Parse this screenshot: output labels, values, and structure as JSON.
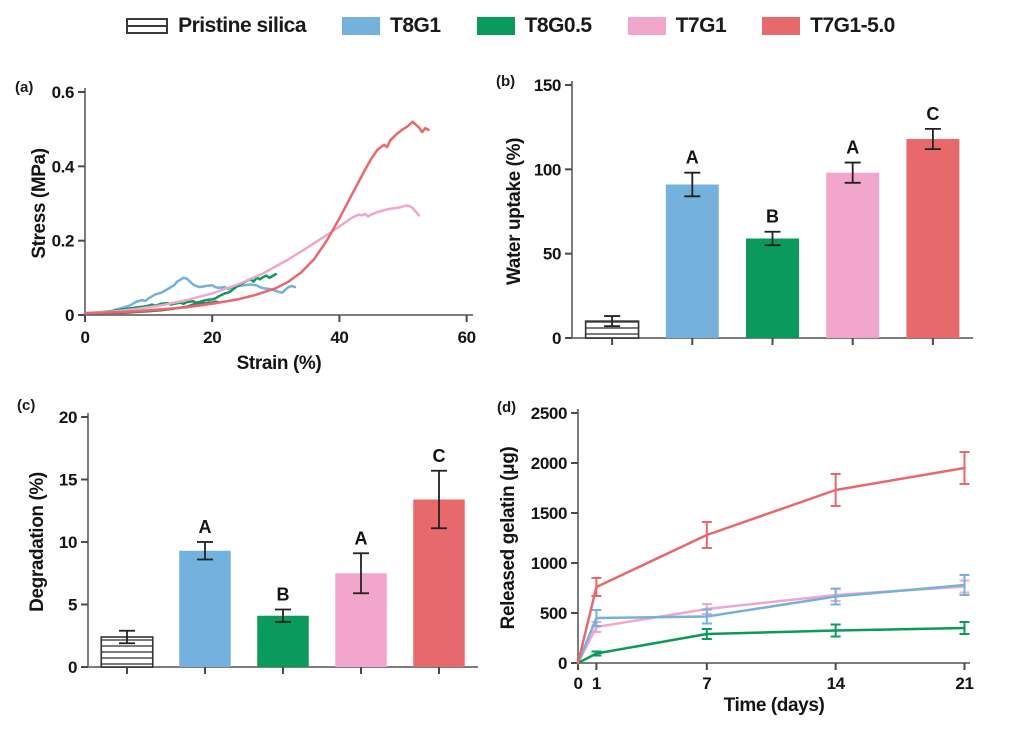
{
  "figure": {
    "legend": [
      {
        "label": "Pristine silica",
        "color": "#ffffff",
        "style": "hatched"
      },
      {
        "label": "T8G1",
        "color": "#74b1dc",
        "style": "solid"
      },
      {
        "label": "T8G0.5",
        "color": "#0a9b5c",
        "style": "solid"
      },
      {
        "label": "T7G1",
        "color": "#f3a6cb",
        "style": "solid"
      },
      {
        "label": "T7G1-5.0",
        "color": "#e8696b",
        "style": "solid"
      }
    ]
  },
  "chart_data": [
    {
      "id": "a",
      "type": "line",
      "panel_label": "(a)",
      "xlabel": "Strain (%)",
      "ylabel": "Stress (MPa)",
      "xlim": [
        0,
        61
      ],
      "ylim": [
        0,
        0.6
      ],
      "xticks": [
        0,
        20,
        40,
        60
      ],
      "yticks": [
        0,
        0.2,
        0.4,
        0.6
      ],
      "grid": false,
      "series": [
        {
          "name": "Pristine silica",
          "color": "#6a6a6a",
          "x": [
            0,
            3,
            6,
            8,
            10,
            12,
            13,
            14,
            15,
            16,
            16.5,
            17,
            17.5,
            18,
            18.5,
            19,
            19.5,
            20,
            20.5,
            21
          ],
          "y": [
            0.003,
            0.004,
            0.006,
            0.008,
            0.01,
            0.013,
            0.015,
            0.017,
            0.02,
            0.022,
            0.025,
            0.028,
            0.032,
            0.03,
            0.033,
            0.031,
            0.034,
            0.033,
            0.036,
            0.034
          ]
        },
        {
          "name": "T8G1",
          "color": "#74b1dc",
          "x": [
            0,
            2,
            4,
            5,
            6,
            7,
            8,
            9,
            9.5,
            10,
            11,
            12,
            13,
            14,
            14.5,
            15,
            15.5,
            16,
            16.5,
            17,
            17.5,
            18,
            19,
            20,
            20.5,
            21,
            22,
            22.5,
            23,
            24,
            25,
            26,
            27,
            27.5,
            28,
            29,
            30,
            30.5,
            31,
            31.5,
            32,
            32.5,
            33
          ],
          "y": [
            0.005,
            0.007,
            0.01,
            0.015,
            0.02,
            0.025,
            0.035,
            0.04,
            0.038,
            0.045,
            0.055,
            0.06,
            0.07,
            0.08,
            0.09,
            0.095,
            0.1,
            0.098,
            0.09,
            0.082,
            0.078,
            0.075,
            0.078,
            0.08,
            0.075,
            0.073,
            0.075,
            0.07,
            0.073,
            0.078,
            0.08,
            0.082,
            0.08,
            0.075,
            0.072,
            0.07,
            0.065,
            0.062,
            0.06,
            0.068,
            0.075,
            0.078,
            0.075
          ]
        },
        {
          "name": "T8G0.5",
          "color": "#0a9b5c",
          "x": [
            0,
            2,
            4,
            6,
            8,
            9,
            10,
            10.5,
            11,
            12,
            13,
            13.5,
            14,
            15,
            15.5,
            16,
            17,
            17.5,
            18,
            19,
            20,
            20.5,
            21,
            22,
            22.5,
            23,
            23.5,
            24,
            24.5,
            25,
            25.5,
            26,
            26.5,
            27,
            27.5,
            28,
            28.5,
            29,
            29.5,
            30
          ],
          "y": [
            0.004,
            0.006,
            0.01,
            0.015,
            0.02,
            0.022,
            0.025,
            0.028,
            0.025,
            0.03,
            0.032,
            0.028,
            0.03,
            0.033,
            0.03,
            0.035,
            0.037,
            0.033,
            0.035,
            0.04,
            0.042,
            0.045,
            0.05,
            0.058,
            0.06,
            0.065,
            0.072,
            0.078,
            0.082,
            0.088,
            0.092,
            0.096,
            0.09,
            0.1,
            0.096,
            0.102,
            0.106,
            0.1,
            0.105,
            0.11
          ]
        },
        {
          "name": "T7G1",
          "color": "#f3a6cb",
          "x": [
            0,
            4,
            8,
            12,
            16,
            20,
            24,
            28,
            32,
            35,
            38,
            40,
            41,
            42,
            43,
            43.5,
            44,
            44.5,
            45,
            46,
            47,
            48,
            49,
            50,
            50.5,
            51,
            51.5,
            52,
            52.5
          ],
          "y": [
            0.005,
            0.009,
            0.016,
            0.026,
            0.04,
            0.058,
            0.082,
            0.112,
            0.15,
            0.182,
            0.215,
            0.238,
            0.25,
            0.262,
            0.27,
            0.268,
            0.272,
            0.265,
            0.27,
            0.277,
            0.282,
            0.286,
            0.288,
            0.292,
            0.295,
            0.293,
            0.288,
            0.278,
            0.268
          ]
        },
        {
          "name": "T7G1-5.0",
          "color": "#e8696b",
          "x": [
            0,
            4,
            8,
            12,
            16,
            20,
            24,
            27,
            30,
            32,
            34,
            36,
            38,
            40,
            42,
            44,
            45,
            46,
            47,
            47.5,
            48,
            49,
            50,
            50.5,
            51,
            51.5,
            52,
            52.5,
            53,
            53.5,
            54
          ],
          "y": [
            0.005,
            0.007,
            0.01,
            0.015,
            0.021,
            0.03,
            0.042,
            0.055,
            0.072,
            0.09,
            0.115,
            0.15,
            0.2,
            0.26,
            0.325,
            0.39,
            0.42,
            0.445,
            0.458,
            0.452,
            0.47,
            0.487,
            0.5,
            0.505,
            0.512,
            0.52,
            0.512,
            0.505,
            0.492,
            0.503,
            0.498
          ]
        }
      ]
    },
    {
      "id": "b",
      "type": "bar",
      "panel_label": "(b)",
      "xlabel": "",
      "ylabel": "Water uptake (%)",
      "ylim": [
        0,
        150
      ],
      "yticks": [
        0,
        50,
        100,
        150
      ],
      "grid": false,
      "bars": [
        {
          "label": "Pristine silica",
          "value": 10,
          "error": 3,
          "letter": "",
          "style": "hatched",
          "color": "#ffffff"
        },
        {
          "label": "T8G1",
          "value": 91,
          "error": 7,
          "letter": "A",
          "style": "solid",
          "color": "#74b1dc"
        },
        {
          "label": "T8G0.5",
          "value": 59,
          "error": 4,
          "letter": "B",
          "style": "solid",
          "color": "#0a9b5c"
        },
        {
          "label": "T7G1",
          "value": 98,
          "error": 6,
          "letter": "A",
          "style": "solid",
          "color": "#f3a6cb"
        },
        {
          "label": "T7G1-5.0",
          "value": 118,
          "error": 6,
          "letter": "C",
          "style": "solid",
          "color": "#e8696b"
        }
      ]
    },
    {
      "id": "c",
      "type": "bar",
      "panel_label": "(c)",
      "xlabel": "",
      "ylabel": "Degradation (%)",
      "ylim": [
        0,
        20
      ],
      "yticks": [
        0,
        5,
        10,
        15,
        20
      ],
      "grid": false,
      "bars": [
        {
          "label": "Pristine silica",
          "value": 2.4,
          "error": 0.5,
          "letter": "",
          "style": "hatched",
          "color": "#ffffff"
        },
        {
          "label": "T8G1",
          "value": 9.3,
          "error": 0.7,
          "letter": "A",
          "style": "solid",
          "color": "#74b1dc"
        },
        {
          "label": "T8G0.5",
          "value": 4.1,
          "error": 0.5,
          "letter": "B",
          "style": "solid",
          "color": "#0a9b5c"
        },
        {
          "label": "T7G1",
          "value": 7.5,
          "error": 1.6,
          "letter": "A",
          "style": "solid",
          "color": "#f3a6cb"
        },
        {
          "label": "T7G1-5.0",
          "value": 13.4,
          "error": 2.3,
          "letter": "C",
          "style": "solid",
          "color": "#e8696b"
        }
      ]
    },
    {
      "id": "d",
      "type": "line",
      "panel_label": "(d)",
      "xlabel": "Time (days)",
      "ylabel": "Released gelatin (μg)",
      "xlim": [
        0,
        21.3
      ],
      "ylim": [
        0,
        2500
      ],
      "xticks": [
        0,
        1,
        7,
        14,
        21
      ],
      "yticks": [
        0,
        500,
        1000,
        1500,
        2000,
        2500
      ],
      "grid": false,
      "series": [
        {
          "name": "T7G1",
          "color": "#f3a6cb",
          "x": [
            0,
            1,
            7,
            14,
            21
          ],
          "y": [
            0,
            360,
            540,
            680,
            765
          ],
          "err": [
            0,
            50,
            50,
            60,
            60
          ]
        },
        {
          "name": "T8G1",
          "color": "#74b1dc",
          "x": [
            0,
            1,
            7,
            14,
            21
          ],
          "y": [
            0,
            450,
            465,
            665,
            780
          ],
          "err": [
            0,
            80,
            70,
            80,
            100
          ]
        },
        {
          "name": "T8G0.5",
          "color": "#0a9b5c",
          "x": [
            0,
            1,
            7,
            14,
            21
          ],
          "y": [
            0,
            95,
            290,
            325,
            350
          ],
          "err": [
            0,
            20,
            50,
            60,
            60
          ]
        },
        {
          "name": "T7G1-5.0",
          "color": "#e8696b",
          "x": [
            0,
            1,
            7,
            14,
            21
          ],
          "y": [
            0,
            760,
            1280,
            1730,
            1950
          ],
          "err": [
            0,
            90,
            130,
            160,
            160
          ]
        }
      ]
    }
  ]
}
